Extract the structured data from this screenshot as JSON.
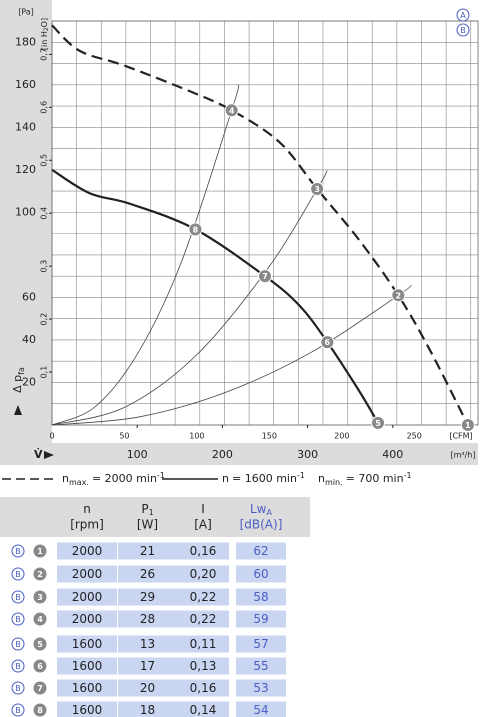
{
  "chart_data": {
    "type": "line",
    "y_unit_label": "[Pa]",
    "y2_unit_label": {
      "text": "[in H",
      "sub": "2",
      "rest": "O]"
    },
    "y_axis_label": {
      "text": "Δ p",
      "sub": "fa"
    },
    "x_axis_label": "V̇",
    "x_unit_label": "[CFM]",
    "x2_unit_label": "[m³/h]",
    "xlim": [
      0,
      294
    ],
    "xticks": [
      0,
      50,
      100,
      150,
      200,
      250
    ],
    "x2lim": [
      0,
      500
    ],
    "x2ticks": [
      100,
      200,
      300,
      400
    ],
    "ylim": [
      0,
      190
    ],
    "yticks": [
      20,
      40,
      60,
      100,
      120,
      140,
      160,
      180
    ],
    "y2lim": [
      0,
      0.763
    ],
    "y2ticks": [
      {
        "value": 0.1,
        "label": "0,1"
      },
      {
        "value": 0.2,
        "label": "0,2"
      },
      {
        "value": 0.3,
        "label": "0,3"
      },
      {
        "value": 0.4,
        "label": "0,4"
      },
      {
        "value": 0.5,
        "label": "0,5"
      },
      {
        "value": 0.6,
        "label": "0,6"
      },
      {
        "value": 0.7,
        "label": "0,7"
      }
    ],
    "xgrid": [
      0,
      17,
      34,
      51,
      68,
      85,
      102,
      119,
      136,
      153,
      170,
      187,
      204,
      221,
      238,
      255,
      272,
      289
    ],
    "ygrid": [
      0,
      10,
      20,
      30,
      40,
      50,
      60,
      70,
      80,
      90,
      100,
      110,
      120,
      130,
      140,
      150,
      160,
      170,
      180,
      190
    ],
    "series": [
      {
        "name": "n",
        "name_sub": "max.",
        "name_rest": "= 2000 min",
        "name_sup": "-1",
        "color": "#222",
        "dashed": true,
        "x": [
          0,
          19,
          50,
          95,
          124,
          157,
          183,
          212,
          239,
          261,
          287
        ],
        "values": [
          188,
          176,
          169,
          157,
          148,
          133,
          111,
          87,
          61,
          35,
          0
        ]
      },
      {
        "name": "n",
        "name_rest": "= 1600 min",
        "name_sup": "-1",
        "color": "#222",
        "dashed": false,
        "x": [
          0,
          26,
          54,
          99,
          147,
          171,
          190,
          212,
          225
        ],
        "values": [
          120,
          109,
          104,
          92,
          70,
          56,
          39,
          16,
          1
        ]
      }
    ],
    "legend_extra": {
      "name": "n",
      "name_sub": "min.",
      "name_rest": "= 700 min",
      "name_sup": "-1"
    },
    "system_curves": [
      {
        "x": [
          0,
          30,
          60,
          90,
          124,
          129
        ],
        "values": [
          0,
          8.7,
          34.6,
          77.9,
          148,
          160
        ]
      },
      {
        "x": [
          0,
          50,
          100,
          150,
          183,
          190
        ],
        "values": [
          0,
          8.3,
          33.1,
          74.6,
          111,
          119.7
        ]
      },
      {
        "x": [
          0,
          60,
          120,
          180,
          239,
          248
        ],
        "values": [
          0,
          3.8,
          15.4,
          34.6,
          61,
          65.7
        ]
      }
    ],
    "operating_points": [
      {
        "label": "1",
        "x": 287,
        "y": 0
      },
      {
        "label": "2",
        "x": 239,
        "y": 61
      },
      {
        "label": "3",
        "x": 183,
        "y": 111
      },
      {
        "label": "4",
        "x": 124,
        "y": 148
      },
      {
        "label": "5",
        "x": 225,
        "y": 1
      },
      {
        "label": "6",
        "x": 190,
        "y": 39
      },
      {
        "label": "7",
        "x": 147,
        "y": 70
      },
      {
        "label": "8",
        "x": 99,
        "y": 92
      }
    ],
    "curve_labels": [
      "A",
      "B"
    ]
  },
  "table": {
    "columns": [
      {
        "name": "n",
        "unit": "[rpm]"
      },
      {
        "name": "P",
        "sub": "1",
        "unit": "[W]"
      },
      {
        "name": "I",
        "unit": "[A]"
      },
      {
        "name": "Lw",
        "sub": "A",
        "unit": "[dB(A)]"
      }
    ],
    "rows": [
      {
        "curve": "B",
        "point": "1",
        "cells": [
          "2000",
          "21",
          "0,16",
          "62"
        ]
      },
      {
        "curve": "B",
        "point": "2",
        "cells": [
          "2000",
          "26",
          "0,20",
          "60"
        ]
      },
      {
        "curve": "B",
        "point": "3",
        "cells": [
          "2000",
          "29",
          "0,22",
          "58"
        ]
      },
      {
        "curve": "B",
        "point": "4",
        "cells": [
          "2000",
          "28",
          "0,22",
          "59"
        ]
      },
      {
        "curve": "B",
        "point": "5",
        "cells": [
          "1600",
          "13",
          "0,11",
          "57"
        ]
      },
      {
        "curve": "B",
        "point": "6",
        "cells": [
          "1600",
          "17",
          "0,13",
          "55"
        ]
      },
      {
        "curve": "B",
        "point": "7",
        "cells": [
          "1600",
          "20",
          "0,16",
          "53"
        ]
      },
      {
        "curve": "B",
        "point": "8",
        "cells": [
          "1600",
          "18",
          "0,14",
          "54"
        ]
      }
    ]
  }
}
